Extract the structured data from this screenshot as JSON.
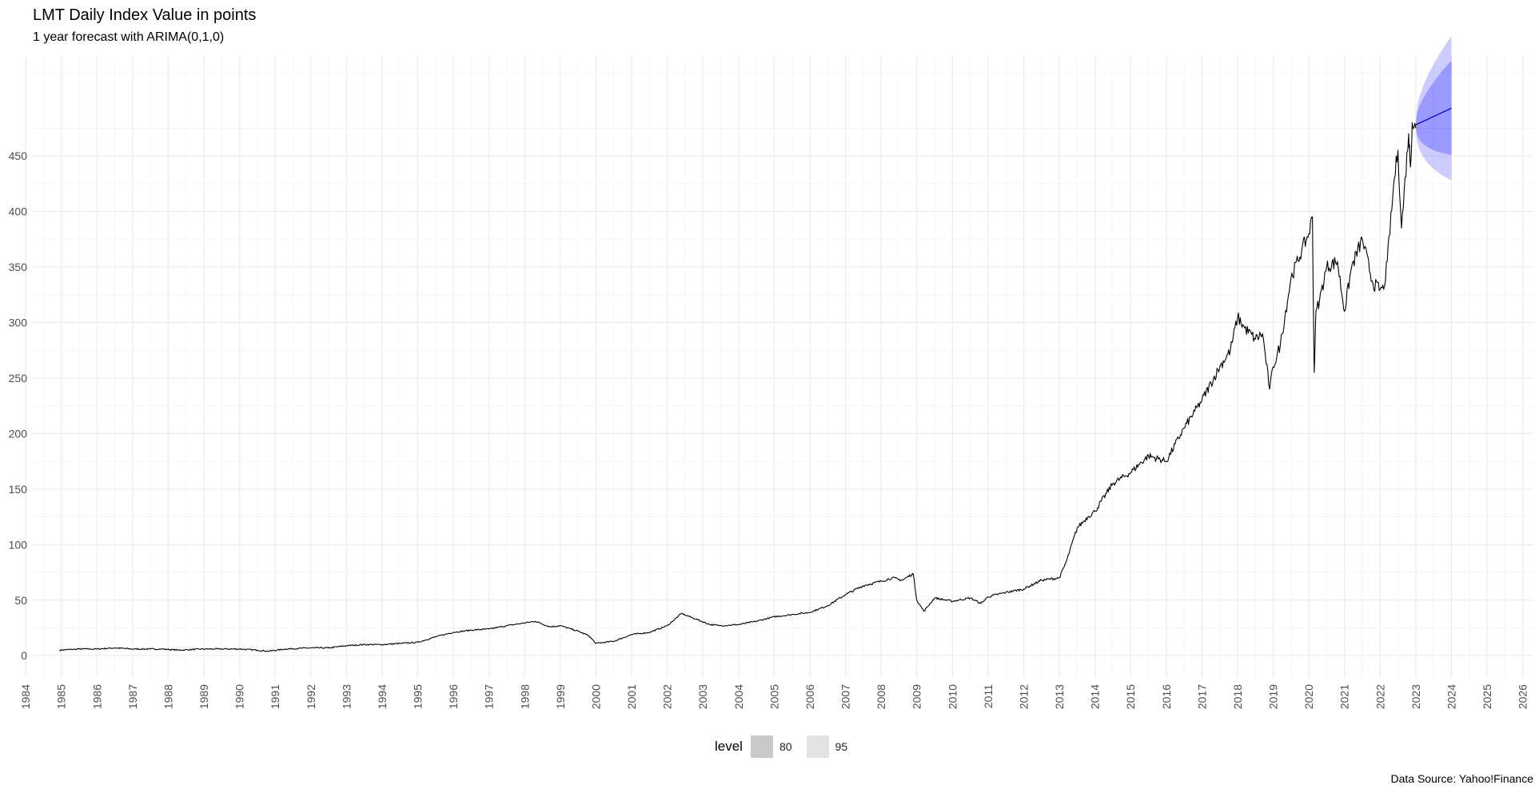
{
  "chart_data": {
    "type": "line",
    "title": "LMT Daily Index Value in points",
    "subtitle": "1 year forecast with ARIMA(0,1,0)",
    "caption": "Data Source: Yahoo!Finance",
    "xlabel": "",
    "ylabel": "",
    "xlim": [
      1984.2,
      2026.3
    ],
    "ylim": [
      -20,
      540
    ],
    "y_ticks": [
      0,
      50,
      100,
      150,
      200,
      250,
      300,
      350,
      400,
      450
    ],
    "x_ticks": [
      "1984",
      "1985",
      "1986",
      "1987",
      "1988",
      "1989",
      "1990",
      "1991",
      "1992",
      "1993",
      "1994",
      "1995",
      "1996",
      "1997",
      "1998",
      "1999",
      "2000",
      "2001",
      "2002",
      "2003",
      "2004",
      "2005",
      "2006",
      "2007",
      "2008",
      "2009",
      "2010",
      "2011",
      "2012",
      "2013",
      "2014",
      "2015",
      "2016",
      "2017",
      "2018",
      "2019",
      "2020",
      "2021",
      "2022",
      "2023",
      "2024",
      "2025",
      "2026"
    ],
    "grid": true,
    "legend": {
      "title": "level",
      "position": "bottom",
      "items": [
        {
          "label": "80",
          "color": "#c9c9c9"
        },
        {
          "label": "95",
          "color": "#e3e3e3"
        }
      ]
    },
    "series": [
      {
        "type": "line",
        "color": "#000000",
        "x": [
          1984.95,
          1985.5,
          1986.0,
          1986.5,
          1987.0,
          1987.5,
          1987.8,
          1988.3,
          1989.0,
          1989.5,
          1990.0,
          1990.5,
          1990.8,
          1991.3,
          1992.0,
          1992.5,
          1993.0,
          1993.5,
          1994.0,
          1994.5,
          1995.0,
          1995.5,
          1996.0,
          1996.5,
          1997.0,
          1997.5,
          1997.9,
          1998.3,
          1998.7,
          1999.0,
          1999.5,
          1999.8,
          2000.0,
          2000.5,
          2001.0,
          2001.5,
          2002.0,
          2002.4,
          2002.8,
          2003.2,
          2003.5,
          2004.0,
          2004.5,
          2005.0,
          2005.5,
          2006.0,
          2006.5,
          2007.0,
          2007.5,
          2008.0,
          2008.3,
          2008.6,
          2008.9,
          2009.0,
          2009.2,
          2009.5,
          2010.0,
          2010.5,
          2010.8,
          2011.0,
          2011.5,
          2012.0,
          2012.5,
          2013.0,
          2013.2,
          2013.5,
          2013.8,
          2014.0,
          2014.5,
          2015.0,
          2015.5,
          2016.0,
          2016.5,
          2016.8,
          2017.0,
          2017.5,
          2017.8,
          2018.0,
          2018.2,
          2018.5,
          2018.7,
          2018.9,
          2019.0,
          2019.2,
          2019.5,
          2019.8,
          2020.0,
          2020.1,
          2020.15,
          2020.2,
          2020.3,
          2020.5,
          2020.8,
          2021.0,
          2021.2,
          2021.5,
          2021.8,
          2022.0,
          2022.1,
          2022.2,
          2022.4,
          2022.5,
          2022.6,
          2022.8,
          2022.85,
          2022.9,
          2023.0
        ],
        "y": [
          5,
          6,
          6,
          7,
          6,
          6,
          6,
          5,
          6,
          6,
          6,
          5,
          4,
          6,
          7,
          7,
          9,
          10,
          10,
          11,
          12,
          17,
          21,
          23,
          24,
          27,
          29,
          31,
          26,
          27,
          22,
          18,
          11,
          13,
          19,
          21,
          27,
          38,
          33,
          28,
          27,
          28,
          31,
          35,
          37,
          39,
          45,
          55,
          63,
          67,
          70,
          68,
          74,
          50,
          40,
          52,
          49,
          52,
          47,
          53,
          57,
          60,
          68,
          70,
          85,
          115,
          125,
          130,
          155,
          165,
          180,
          175,
          205,
          220,
          230,
          260,
          275,
          305,
          295,
          285,
          290,
          240,
          260,
          280,
          340,
          365,
          380,
          395,
          255,
          310,
          320,
          350,
          355,
          310,
          350,
          375,
          335,
          330,
          330,
          355,
          430,
          455,
          385,
          470,
          440,
          480,
          475
        ]
      },
      {
        "type": "forecast",
        "color": "#0000cc",
        "x": [
          2023.0,
          2024.0
        ],
        "mean": [
          478,
          493
        ],
        "lo80": [
          476,
          451
        ],
        "hi80": [
          480,
          536
        ],
        "lo95": [
          474,
          428
        ],
        "hi95": [
          482,
          558
        ]
      }
    ]
  }
}
